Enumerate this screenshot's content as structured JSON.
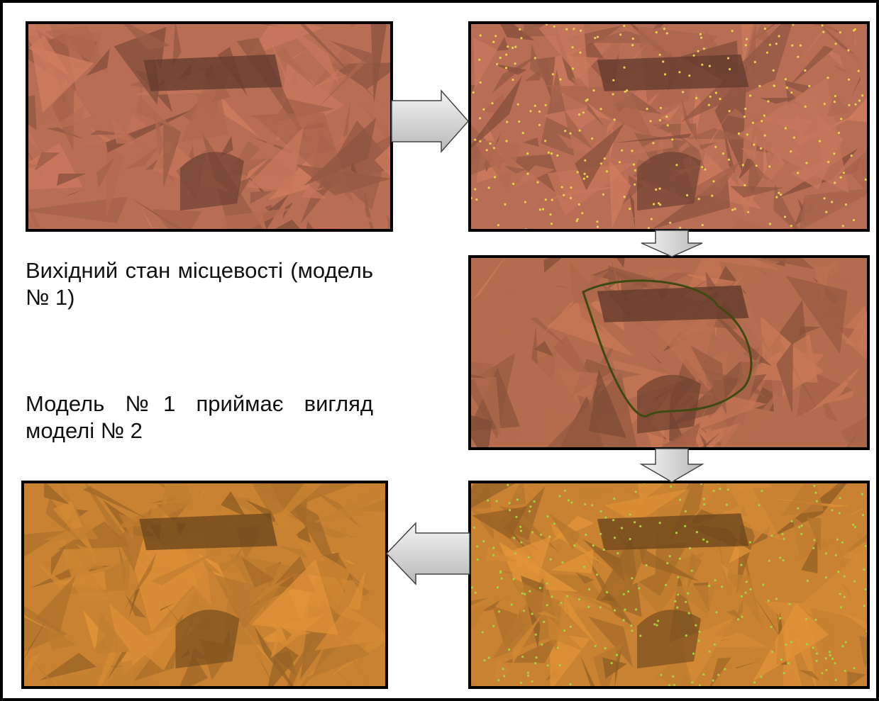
{
  "captions": [
    "Вихідний стан місцевості (модель № 1)",
    "Модель №1 приймає вигляд моделі № 2"
  ]
}
